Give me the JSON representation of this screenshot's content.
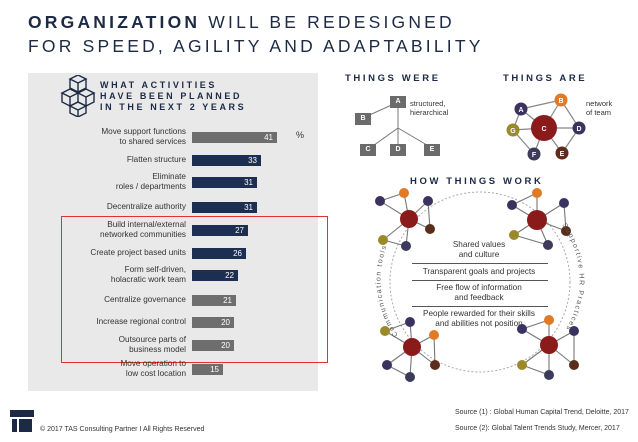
{
  "title": {
    "bold": "ORGANIZATION",
    "rest": " WILL BE REDESIGNED",
    "line2": "FOR SPEED, AGILITY AND ADAPTABILITY"
  },
  "panel": {
    "heading": "WHAT ACTIVITIES\nHAVE BEEN PLANNED\nIN THE NEXT 2 YEARS",
    "unit": "%"
  },
  "chart_data": {
    "type": "bar",
    "orientation": "horizontal",
    "title": "What activities have been planned in the next 2 years",
    "unit": "%",
    "categories": [
      "Move support functions to shared services",
      "Flatten structure",
      "Eliminate roles / departments",
      "Decentralize authority",
      "Build internal/external networked communities",
      "Create project based units",
      "Form self-driven, holacratic work team",
      "Centralize governance",
      "Increase regional control",
      "Outsource parts of business model",
      "Move operation to low cost location"
    ],
    "display_labels": [
      "Move support functions\nto shared services",
      "Flatten structure",
      "Eliminate\nroles / departments",
      "Decentralize authority",
      "Build internal/external\nnetworked communities",
      "Create project based units",
      "Form self-driven,\nholacratic work team",
      "Centralize governance",
      "Increase regional control",
      "Outsource parts of\nbusiness model",
      "Move operation to\nlow cost location"
    ],
    "values": [
      41,
      33,
      31,
      31,
      27,
      26,
      22,
      21,
      20,
      20,
      15
    ],
    "highlighted": [
      false,
      true,
      true,
      true,
      true,
      true,
      true,
      false,
      false,
      false,
      false
    ],
    "xlim": [
      0,
      48
    ],
    "colors": {
      "highlight": "#1c2e52",
      "normal": "#6e6e6e",
      "box": "#e53030"
    }
  },
  "things_were": {
    "heading": "THINGS WERE",
    "note": "structured,\nhierarchical",
    "boxes": [
      "A",
      "B",
      "C",
      "D",
      "E"
    ]
  },
  "things_are": {
    "heading": "THINGS ARE",
    "note": "network\nof team",
    "nodes": [
      "A",
      "B",
      "C",
      "D",
      "E",
      "F",
      "G"
    ]
  },
  "how": {
    "heading": "HOW THINGS WORK",
    "items": [
      "Shared values\nand culture",
      "Transparent goals and projects",
      "Free flow of information\nand feedback",
      "People rewarded for their skills\nand abilities not position"
    ],
    "left_arc": "Communication tools",
    "right_arc": "Supportive HR Practices"
  },
  "footer": {
    "copyright": "© 2017 TAS Consulting Partner  I  All Rights Reserved",
    "source1": "Source (1) :  Global Human Capital Trend, Deloitte, 2017",
    "source2": "Source (2):  Global Talent Trends Study, Mercer, 2017"
  }
}
